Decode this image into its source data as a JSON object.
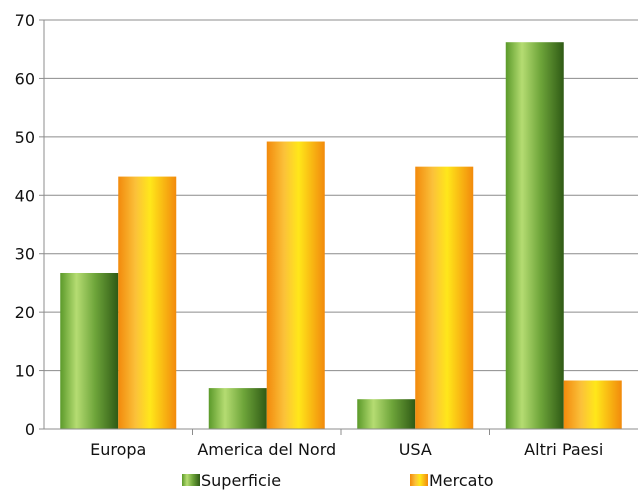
{
  "chart_data": {
    "type": "bar",
    "categories": [
      "Europa",
      "America del Nord",
      "USA",
      "Altri Paesi"
    ],
    "series": [
      {
        "name": "Superficie",
        "values": [
          26.7,
          7.0,
          5.1,
          66.2
        ],
        "color": "#5a9a2c"
      },
      {
        "name": "Mercato",
        "values": [
          43.2,
          49.2,
          44.9,
          8.3
        ],
        "color": "#f5a20f"
      }
    ],
    "title": "",
    "xlabel": "",
    "ylabel": "",
    "ylim": [
      0,
      70
    ],
    "yticks": [
      0,
      10,
      20,
      30,
      40,
      50,
      60,
      70
    ],
    "grid": true,
    "legend_position": "bottom"
  }
}
